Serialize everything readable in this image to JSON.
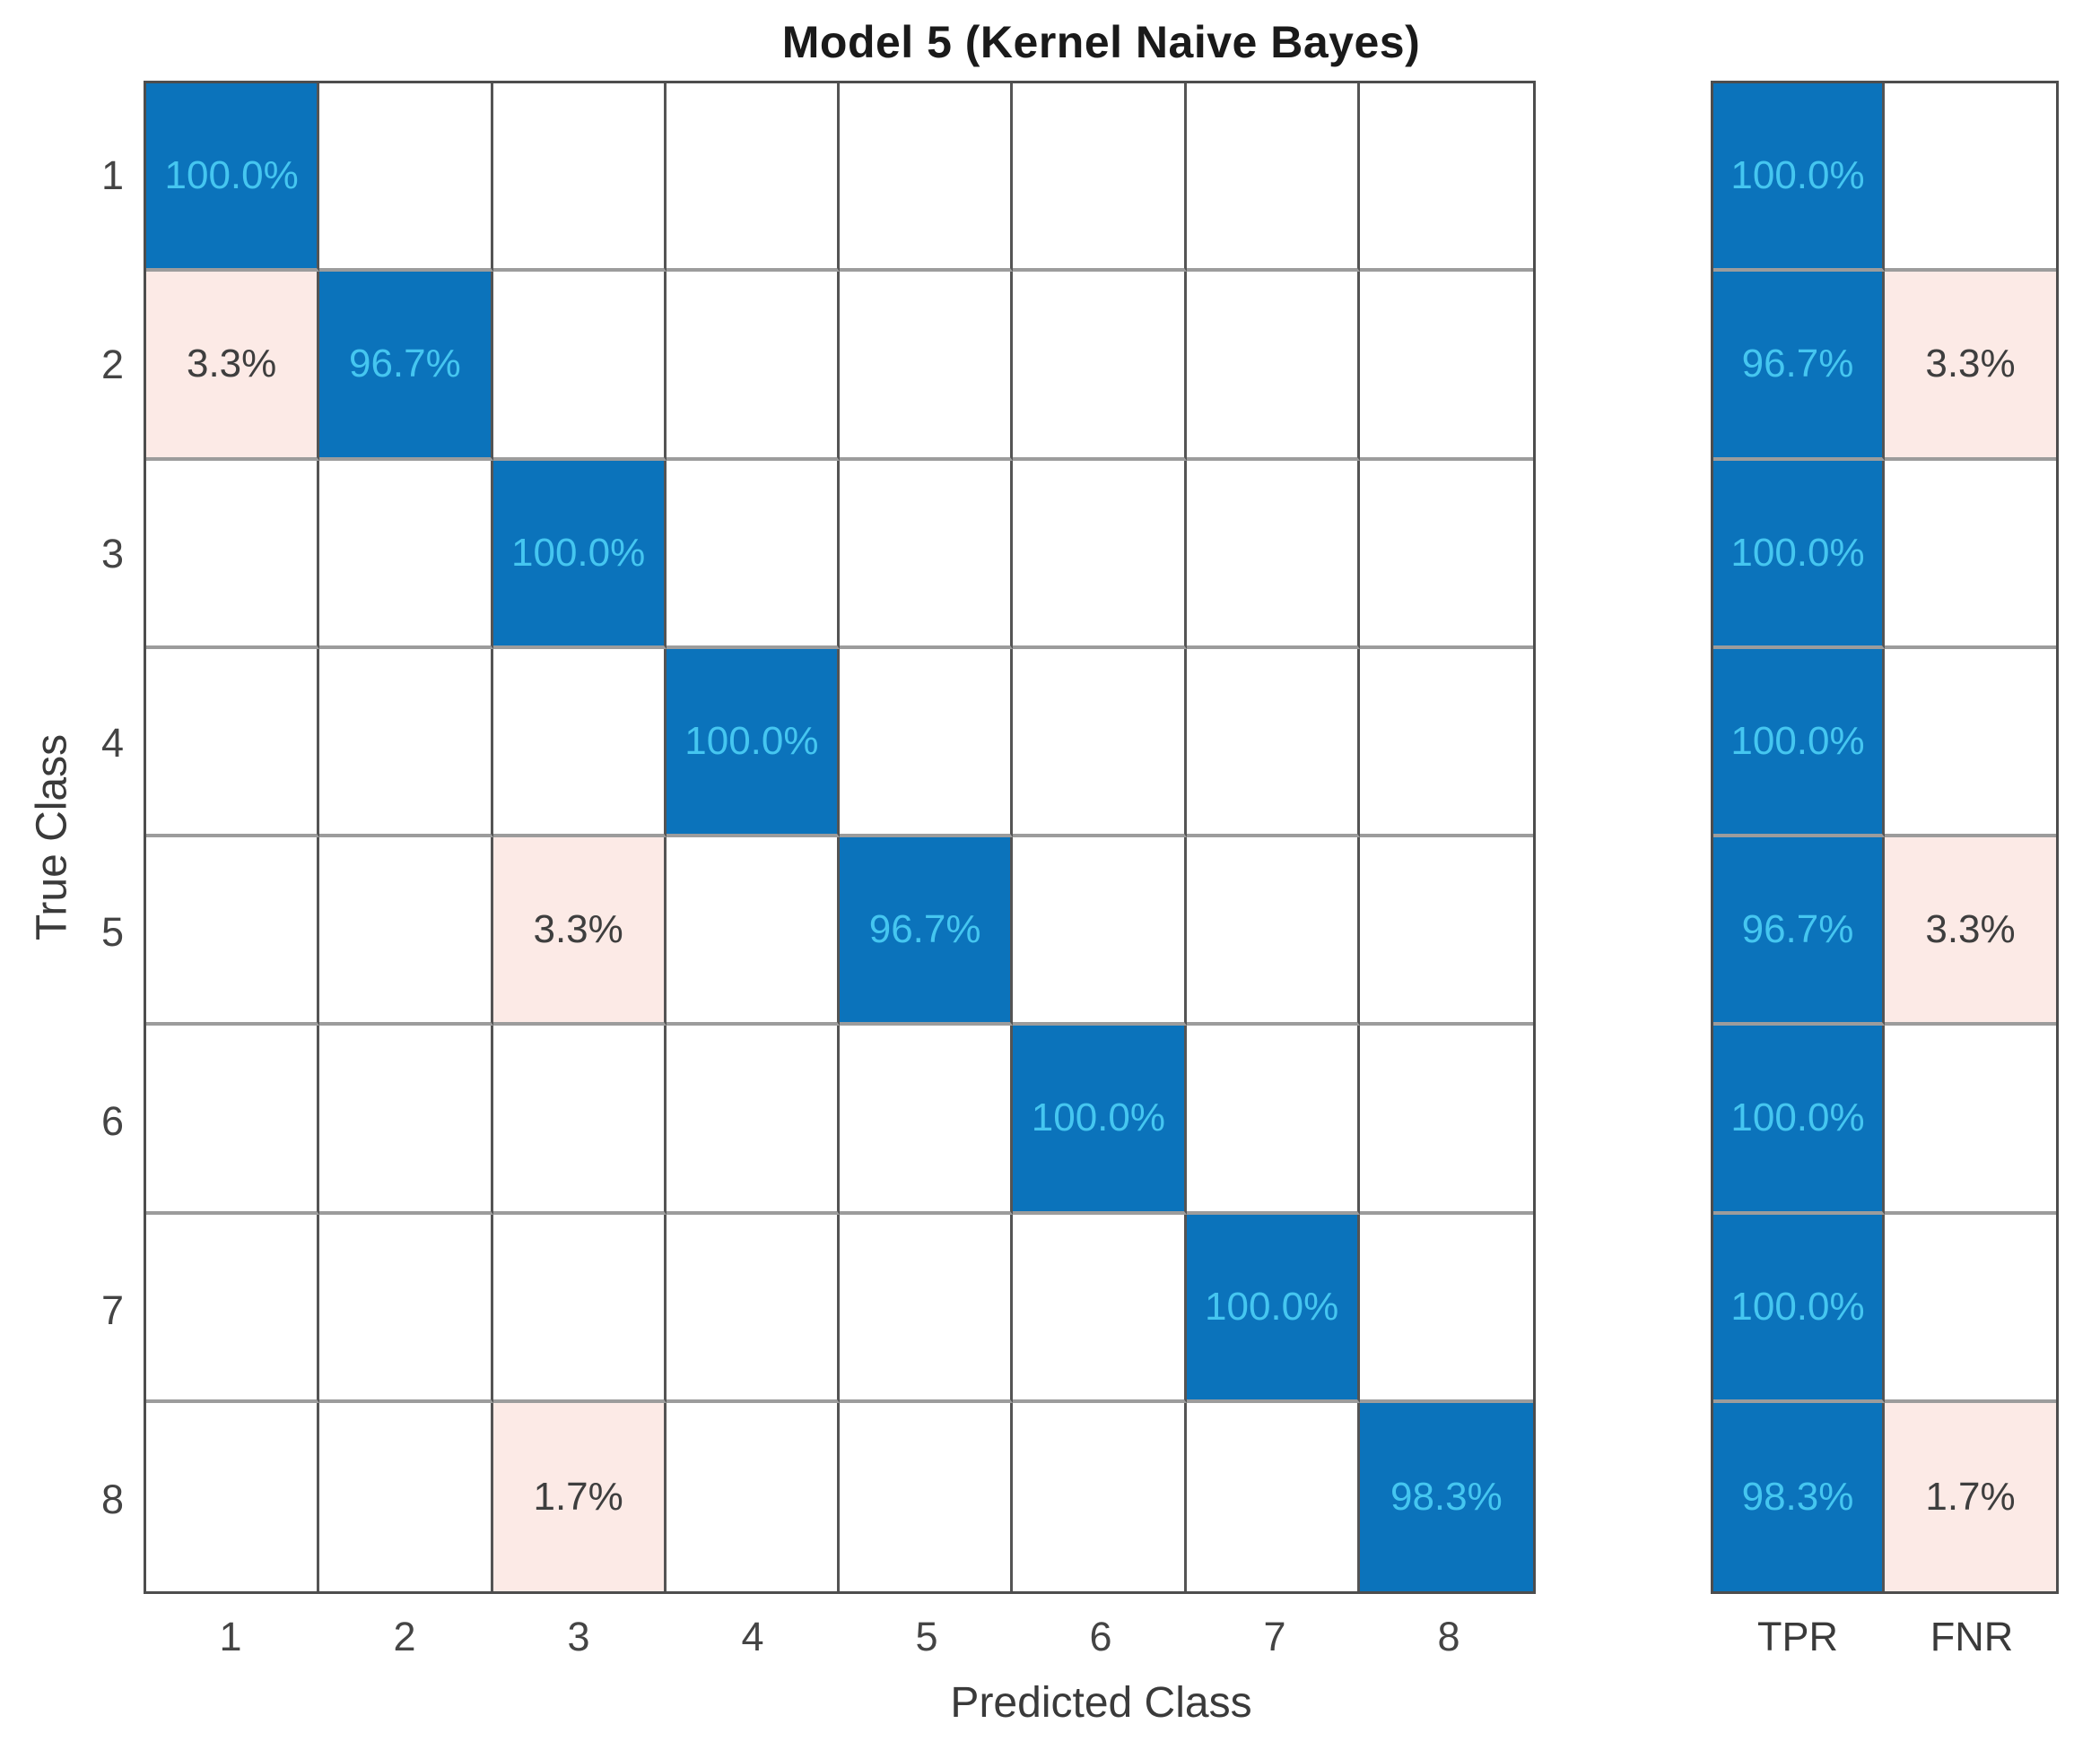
{
  "chart_data": {
    "type": "heatmap",
    "subtype": "confusion-matrix",
    "title": "Model 5 (Kernel Naive Bayes)",
    "xlabel": "Predicted Class",
    "ylabel": "True Class",
    "x_tick_labels": [
      "1",
      "2",
      "3",
      "4",
      "5",
      "6",
      "7",
      "8"
    ],
    "y_tick_labels": [
      "1",
      "2",
      "3",
      "4",
      "5",
      "6",
      "7",
      "8"
    ],
    "cells": [
      [
        "100.0%",
        "",
        "",
        "",
        "",
        "",
        "",
        ""
      ],
      [
        "3.3%",
        "96.7%",
        "",
        "",
        "",
        "",
        "",
        ""
      ],
      [
        "",
        "",
        "100.0%",
        "",
        "",
        "",
        "",
        ""
      ],
      [
        "",
        "",
        "",
        "100.0%",
        "",
        "",
        "",
        ""
      ],
      [
        "",
        "",
        "3.3%",
        "",
        "96.7%",
        "",
        "",
        ""
      ],
      [
        "",
        "",
        "",
        "",
        "",
        "100.0%",
        "",
        ""
      ],
      [
        "",
        "",
        "",
        "",
        "",
        "",
        "100.0%",
        ""
      ],
      [
        "",
        "",
        "1.7%",
        "",
        "",
        "",
        "",
        "98.3%"
      ]
    ],
    "summary": {
      "tpr_label": "TPR",
      "fnr_label": "FNR",
      "tpr": [
        "100.0%",
        "96.7%",
        "100.0%",
        "100.0%",
        "96.7%",
        "100.0%",
        "100.0%",
        "98.3%"
      ],
      "fnr": [
        "",
        "3.3%",
        "",
        "",
        "3.3%",
        "",
        "",
        "1.7%"
      ]
    },
    "colors": {
      "diagonal_fill": "#0b73bb",
      "offdiagonal_fill": "#fceae6",
      "empty_fill": "#ffffff",
      "text_on_blue": "#45c6f0",
      "text_dark": "#3e3e3e"
    },
    "grid": true,
    "legend_position": "none"
  }
}
